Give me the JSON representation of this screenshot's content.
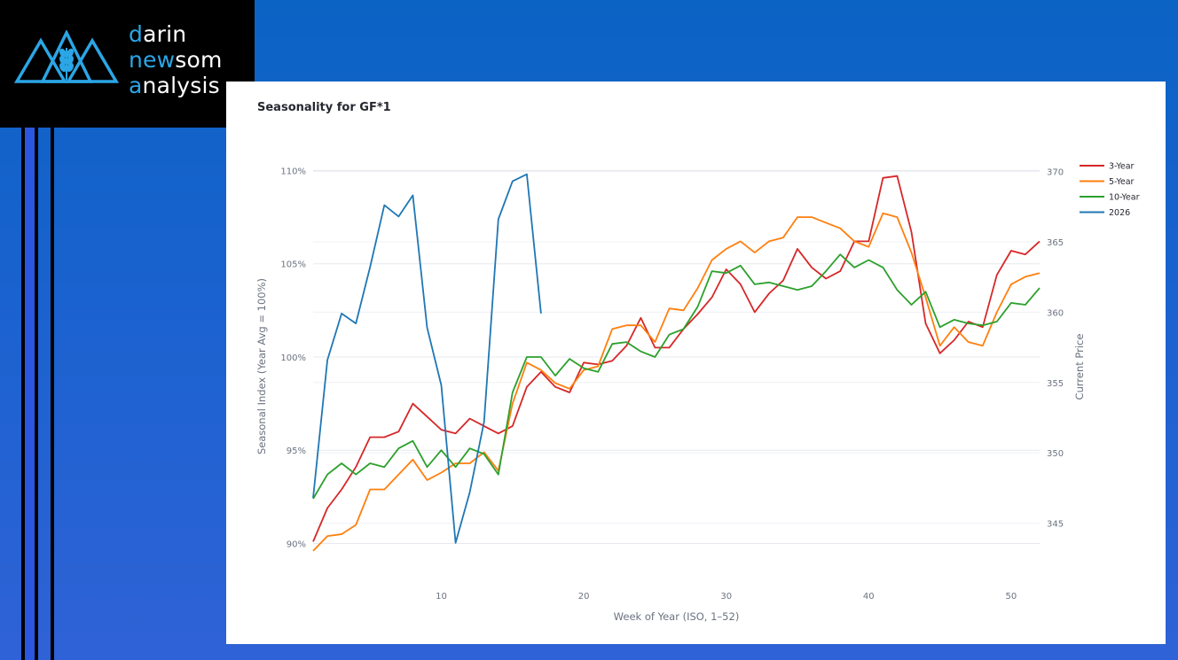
{
  "brand": {
    "line1_initial": "d",
    "line1_rest": "arin",
    "line2_initial": "n",
    "line2_mid": "ew",
    "line2_rest": "som",
    "line3_initial": "a",
    "line3_rest": "nalysis"
  },
  "chart_data": {
    "type": "line",
    "title": "Seasonality for GF*1",
    "xlabel": "Week of Year (ISO, 1–52)",
    "ylabel": "Seasonal Index (Year Avg = 100%)",
    "y2label": "Current Price",
    "xlim": [
      1,
      52
    ],
    "ylim": [
      88.6,
      110.4
    ],
    "y2lim": [
      341.7,
      370.6
    ],
    "xticks": [
      10,
      20,
      30,
      40,
      50
    ],
    "yticks": [
      90,
      95,
      100,
      105,
      110
    ],
    "y2ticks": [
      345,
      350,
      355,
      360,
      365,
      370
    ],
    "grid": true,
    "legend_position": "top-right",
    "colors": {
      "3-Year": "#d62728",
      "5-Year": "#ff7f0e",
      "10-Year": "#2ca02c",
      "2026": "#1f77b4"
    },
    "series": [
      {
        "name": "3-Year",
        "axis": "left",
        "x": [
          1,
          2,
          3,
          4,
          5,
          6,
          7,
          8,
          9,
          10,
          11,
          12,
          13,
          14,
          15,
          16,
          17,
          18,
          19,
          20,
          21,
          22,
          23,
          24,
          25,
          26,
          27,
          28,
          29,
          30,
          31,
          32,
          33,
          34,
          35,
          36,
          37,
          38,
          39,
          40,
          41,
          42,
          43,
          44,
          45,
          46,
          47,
          48,
          49,
          50,
          51,
          52
        ],
        "values": [
          90.1,
          91.9,
          92.9,
          94.1,
          95.7,
          95.7,
          96,
          97.5,
          96.8,
          96.1,
          95.9,
          96.7,
          96.3,
          95.9,
          96.3,
          98.4,
          99.2,
          98.4,
          98.1,
          99.7,
          99.6,
          99.8,
          100.6,
          102.1,
          100.5,
          100.5,
          101.5,
          102.3,
          103.2,
          104.7,
          103.9,
          102.4,
          103.4,
          104.1,
          105.8,
          104.8,
          104.2,
          104.6,
          106.2,
          106.2,
          109.6,
          109.7,
          106.7,
          101.8,
          100.2,
          100.9,
          101.9,
          101.6,
          104.4,
          105.7,
          105.5,
          106.2
        ]
      },
      {
        "name": "5-Year",
        "axis": "left",
        "x": [
          1,
          2,
          3,
          4,
          5,
          6,
          7,
          8,
          9,
          10,
          11,
          12,
          13,
          14,
          15,
          16,
          17,
          18,
          19,
          20,
          21,
          22,
          23,
          24,
          25,
          26,
          27,
          28,
          29,
          30,
          31,
          32,
          33,
          34,
          35,
          36,
          37,
          38,
          39,
          40,
          41,
          42,
          43,
          44,
          45,
          46,
          47,
          48,
          49,
          50,
          51,
          52
        ],
        "values": [
          89.6,
          90.4,
          90.5,
          91,
          92.9,
          92.9,
          93.7,
          94.5,
          93.4,
          93.8,
          94.3,
          94.3,
          94.9,
          93.9,
          97.5,
          99.7,
          99.3,
          98.6,
          98.3,
          99.3,
          99.5,
          101.5,
          101.7,
          101.7,
          100.8,
          102.6,
          102.5,
          103.7,
          105.2,
          105.8,
          106.2,
          105.6,
          106.2,
          106.4,
          107.5,
          107.5,
          107.2,
          106.9,
          106.2,
          105.9,
          107.7,
          107.5,
          105.6,
          103.2,
          100.6,
          101.6,
          100.8,
          100.6,
          102.4,
          103.9,
          104.3,
          104.5
        ]
      },
      {
        "name": "10-Year",
        "axis": "left",
        "x": [
          1,
          2,
          3,
          4,
          5,
          6,
          7,
          8,
          9,
          10,
          11,
          12,
          13,
          14,
          15,
          16,
          17,
          18,
          19,
          20,
          21,
          22,
          23,
          24,
          25,
          26,
          27,
          28,
          29,
          30,
          31,
          32,
          33,
          34,
          35,
          36,
          37,
          38,
          39,
          40,
          41,
          42,
          43,
          44,
          45,
          46,
          47,
          48,
          49,
          50,
          51,
          52
        ],
        "values": [
          92.4,
          93.7,
          94.3,
          93.7,
          94.3,
          94.1,
          95.1,
          95.5,
          94.1,
          95,
          94.1,
          95.1,
          94.8,
          93.7,
          98.1,
          100,
          100,
          99,
          99.9,
          99.4,
          99.2,
          100.7,
          100.8,
          100.3,
          100,
          101.2,
          101.5,
          102.7,
          104.6,
          104.5,
          104.9,
          103.9,
          104,
          103.8,
          103.6,
          103.8,
          104.6,
          105.5,
          104.8,
          105.2,
          104.8,
          103.6,
          102.8,
          103.5,
          101.6,
          102,
          101.8,
          101.7,
          101.9,
          102.9,
          102.8,
          103.7
        ]
      },
      {
        "name": "2026",
        "axis": "right",
        "x": [
          1,
          2,
          3,
          4,
          5,
          6,
          7,
          8,
          9,
          10,
          11,
          12,
          13,
          14,
          15,
          16,
          17
        ],
        "values": [
          346.8,
          356.6,
          359.9,
          359.2,
          363.2,
          367.6,
          366.8,
          368.3,
          358.9,
          354.8,
          343.6,
          347.2,
          352.2,
          366.6,
          369.3,
          369.8,
          359.9
        ]
      }
    ]
  }
}
